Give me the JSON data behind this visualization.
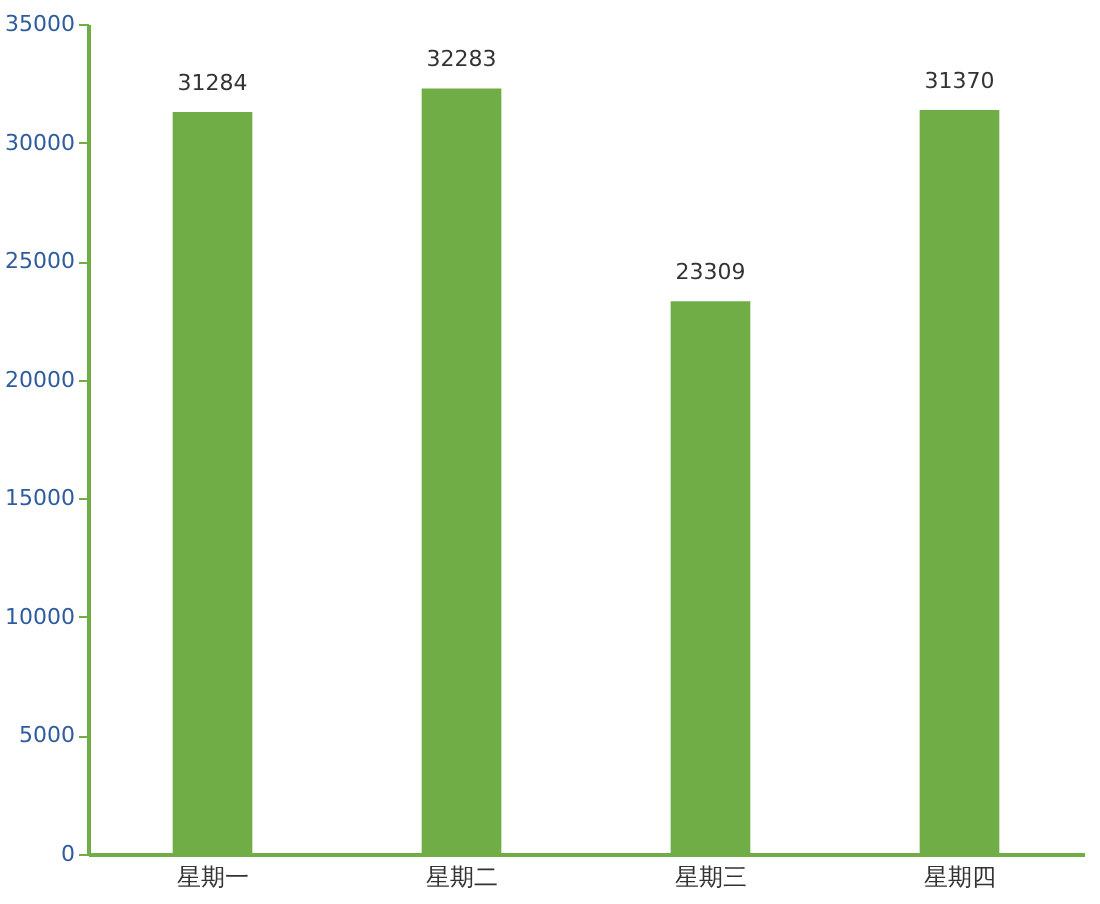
{
  "chart_data": {
    "type": "bar",
    "categories": [
      "星期一",
      "星期二",
      "星期三",
      "星期四"
    ],
    "values": [
      31284,
      32283,
      23309,
      31370
    ],
    "color": "#70ad47",
    "ylim": [
      0,
      35000
    ],
    "yticks": [
      0,
      5000,
      10000,
      15000,
      20000,
      25000,
      30000,
      35000
    ],
    "grid": false,
    "data_labels": true
  }
}
